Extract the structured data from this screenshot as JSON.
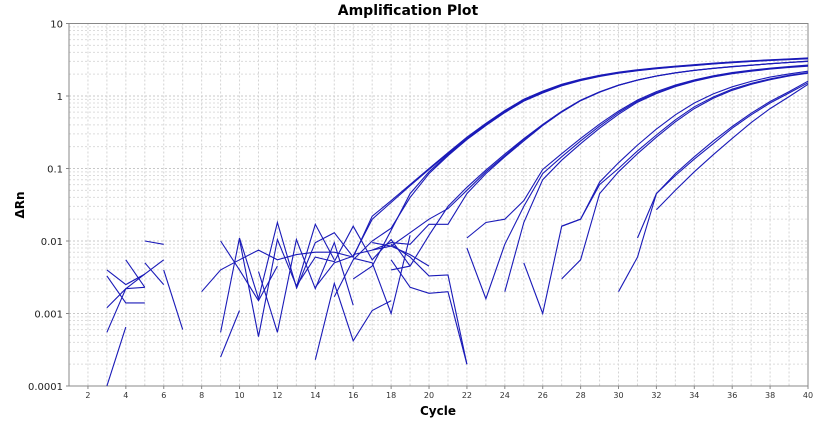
{
  "chart_data": {
    "type": "line",
    "title": "Amplification Plot",
    "xlabel": "Cycle",
    "ylabel": "ΔRn",
    "xlim": [
      1,
      40
    ],
    "ylim": [
      0.0001,
      10
    ],
    "yscale": "log",
    "grid": true,
    "line_color": "#1a1ab8",
    "x_ticks": [
      "2",
      "4",
      "6",
      "8",
      "10",
      "12",
      "14",
      "16",
      "18",
      "20",
      "22",
      "24",
      "26",
      "28",
      "30",
      "32",
      "34",
      "36",
      "38",
      "40"
    ],
    "y_ticks": [
      "0.0001",
      "0.001",
      "0.01",
      "0.1",
      "1",
      "10"
    ],
    "series": [
      {
        "start": 14,
        "values": [
          0.0023,
          0.005,
          0.0062,
          0.02,
          0.034,
          0.058,
          0.097,
          0.16,
          0.26,
          0.41,
          0.62,
          0.88,
          1.15,
          1.42,
          1.67,
          1.9,
          2.1,
          2.27,
          2.42,
          2.55,
          2.67,
          2.8,
          2.92,
          3.03,
          3.13,
          3.22,
          3.3
        ]
      },
      {
        "start": 13,
        "values": [
          0.0022,
          0.0095,
          0.013,
          0.006,
          0.022,
          0.036,
          0.06,
          0.1,
          0.165,
          0.27,
          0.42,
          0.63,
          0.9,
          1.17,
          1.45,
          1.7,
          1.93,
          2.13,
          2.3,
          2.45,
          2.58,
          2.7,
          2.83,
          2.95,
          3.06,
          3.16,
          3.25,
          3.35
        ]
      },
      {
        "start": 16,
        "values": [
          0.003,
          0.0045,
          0.014,
          0.045,
          0.09,
          0.155,
          0.255,
          0.4,
          0.6,
          0.86,
          1.12,
          1.4,
          1.65,
          1.88,
          2.08,
          2.25,
          2.4,
          2.53,
          2.65,
          2.78,
          2.9,
          3.01,
          3.11,
          3.2,
          3.28
        ]
      },
      {
        "start": 15,
        "values": [
          0.0017,
          0.0055,
          0.01,
          0.015,
          0.04,
          0.085,
          0.15,
          0.25,
          0.39,
          0.59,
          0.85,
          1.1,
          1.38,
          1.63,
          1.86,
          2.06,
          2.23,
          2.38,
          2.51,
          2.63,
          2.76,
          2.88,
          2.99,
          3.09,
          3.18,
          3.26
        ]
      },
      {
        "start": 18,
        "values": [
          0.004,
          0.0045,
          0.012,
          0.03,
          0.055,
          0.095,
          0.158,
          0.258,
          0.405,
          0.615,
          0.875,
          1.14,
          1.41,
          1.66,
          1.89,
          2.09,
          2.26,
          2.41,
          2.54,
          2.66,
          2.79,
          2.91,
          3.02
        ]
      },
      {
        "start": 17,
        "values": [
          0.0075,
          0.0095,
          0.009,
          0.017,
          0.017,
          0.045,
          0.085,
          0.145,
          0.24,
          0.39,
          0.6,
          0.86,
          1.13,
          1.4,
          1.65,
          1.88,
          2.08,
          2.25,
          2.4,
          2.53,
          2.65,
          2.78,
          2.9,
          3.0
        ]
      },
      {
        "start": 16,
        "values": [
          0.0065,
          0.0075,
          0.0085,
          0.013,
          0.02,
          0.028,
          0.05,
          0.09,
          0.15,
          0.25,
          0.4,
          0.61,
          0.87,
          1.14,
          1.41,
          1.66,
          1.89,
          2.09,
          2.26,
          2.41,
          2.54,
          2.66,
          2.79,
          2.91,
          3.02
        ]
      },
      {
        "start": 22,
        "values": [
          0.011,
          0.018,
          0.02,
          0.036,
          0.097,
          0.16,
          0.26,
          0.41,
          0.62,
          0.88,
          1.15,
          1.42,
          1.67,
          1.9,
          2.1,
          2.27,
          2.42,
          2.55,
          2.67
        ]
      },
      {
        "start": 22,
        "values": [
          0.008,
          0.0016,
          0.009,
          0.03,
          0.085,
          0.145,
          0.24,
          0.385,
          0.59,
          0.85,
          1.11,
          1.38,
          1.63,
          1.86,
          2.06,
          2.23,
          2.38,
          2.51,
          2.62
        ]
      },
      {
        "start": 24,
        "values": [
          0.002,
          0.018,
          0.07,
          0.13,
          0.22,
          0.36,
          0.56,
          0.82,
          1.08,
          1.35,
          1.6,
          1.83,
          2.03,
          2.2,
          2.35,
          2.48,
          2.58
        ]
      },
      {
        "start": 25,
        "values": [
          0.005,
          0.001,
          0.016,
          0.02,
          0.065,
          0.12,
          0.21,
          0.35,
          0.55,
          0.8,
          1.07,
          1.34,
          1.59,
          1.82,
          2.02,
          2.2
        ]
      },
      {
        "start": 27,
        "values": [
          0.003,
          0.0055,
          0.045,
          0.09,
          0.16,
          0.27,
          0.44,
          0.67,
          0.93,
          1.2,
          1.45,
          1.68,
          1.89,
          2.06
        ]
      },
      {
        "start": 27,
        "values": [
          0.016,
          0.02,
          0.06,
          0.1,
          0.175,
          0.29,
          0.47,
          0.71,
          0.97,
          1.24,
          1.49,
          1.72,
          1.93,
          2.1
        ]
      },
      {
        "start": 30,
        "values": [
          0.002,
          0.006,
          0.045,
          0.085,
          0.145,
          0.24,
          0.38,
          0.58,
          0.84,
          1.15,
          1.6
        ]
      },
      {
        "start": 31,
        "values": [
          0.011,
          0.045,
          0.08,
          0.135,
          0.22,
          0.36,
          0.55,
          0.8,
          1.1,
          1.52
        ]
      },
      {
        "start": 32,
        "values": [
          0.027,
          0.05,
          0.09,
          0.155,
          0.26,
          0.43,
          0.67,
          0.98,
          1.45
        ]
      },
      {
        "start": 3,
        "values": [
          0.004,
          0.0025,
          0.0035
        ]
      },
      {
        "start": 3,
        "values": [
          0.0012,
          0.0022,
          0.0023
        ]
      },
      {
        "start": 3,
        "values": [
          0.00055,
          0.0022,
          0.0035,
          0.0055
        ]
      },
      {
        "start": 3,
        "values": [
          0.0001,
          0.00065
        ]
      },
      {
        "start": 3,
        "values": [
          0.0033,
          0.0014,
          0.0014
        ]
      },
      {
        "start": 4,
        "values": [
          0.0055,
          0.0023
        ]
      },
      {
        "start": 5,
        "values": [
          0.01,
          0.009
        ]
      },
      {
        "start": 5,
        "values": [
          0.005,
          0.0025
        ]
      },
      {
        "start": 6,
        "values": [
          0.004,
          0.0006
        ]
      },
      {
        "start": 8,
        "values": [
          0.002,
          0.004,
          0.0055,
          0.0075,
          0.0055,
          0.0065,
          0.007,
          0.007,
          0.006
        ]
      },
      {
        "start": 9,
        "values": [
          0.01,
          0.004,
          0.0015,
          0.0045
        ]
      },
      {
        "start": 9,
        "values": [
          0.00055,
          0.011,
          0.0016,
          0.018,
          0.0023,
          0.017,
          0.0055
        ]
      },
      {
        "start": 9,
        "values": [
          0.00025,
          0.0011
        ]
      },
      {
        "start": 11,
        "values": [
          0.0038,
          0.00055,
          0.0105,
          0.0022,
          0.0095,
          0.0013
        ]
      },
      {
        "start": 10,
        "values": [
          0.0105,
          0.00048,
          0.0105,
          0.0024,
          0.006,
          0.0052,
          0.016,
          0.0055,
          0.0105,
          0.0045
        ]
      },
      {
        "start": 14,
        "values": [
          0.00023,
          0.0026,
          0.00042,
          0.0011,
          0.0015
        ]
      },
      {
        "start": 16,
        "values": [
          0.0058,
          0.005,
          0.001,
          0.012
        ]
      },
      {
        "start": 17,
        "values": [
          0.0095,
          0.0085,
          0.0065,
          0.0045
        ]
      },
      {
        "start": 18,
        "values": [
          0.0055,
          0.0023,
          0.0019,
          0.002,
          0.0002
        ]
      },
      {
        "start": 18,
        "values": [
          0.009,
          0.006,
          0.0033,
          0.0034,
          0.0002
        ]
      }
    ]
  }
}
